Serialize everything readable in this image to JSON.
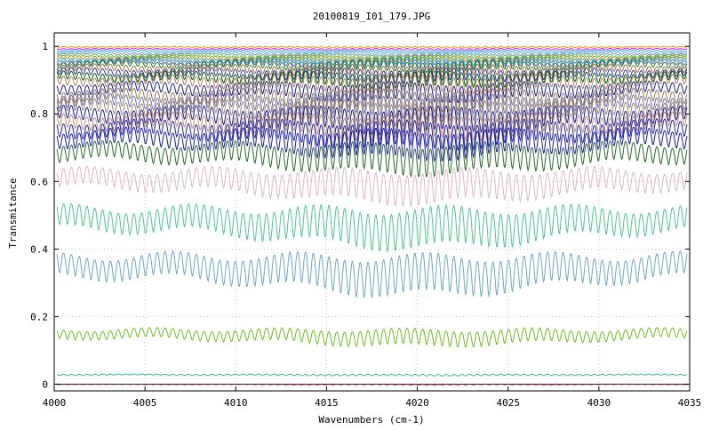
{
  "chart_data": {
    "type": "line",
    "title": "20100819_I01_179.JPG",
    "xlabel": "Wavenumbers (cm-1)",
    "ylabel": "Transmitance",
    "xlim": [
      4000,
      4035
    ],
    "ylim": [
      -0.02,
      1.04
    ],
    "xticks": [
      4000,
      4005,
      4010,
      4015,
      4020,
      4025,
      4030,
      4035
    ],
    "yticks": [
      0,
      0.2,
      0.4,
      0.6,
      0.8,
      1
    ],
    "ytick_labels": [
      "0",
      "0.2",
      "0.4",
      "0.6",
      "0.8",
      "1"
    ],
    "grid": true,
    "legend": "none",
    "series": [
      {
        "color": "#e8a000",
        "level": 1.0,
        "depth": 0.004
      },
      {
        "color": "#ff00ff",
        "level": 0.995,
        "depth": 0.006
      },
      {
        "color": "#00c8c8",
        "level": 0.99,
        "depth": 0.008
      },
      {
        "color": "#8080ff",
        "level": 0.985,
        "depth": 0.012
      },
      {
        "color": "#40c040",
        "level": 0.98,
        "depth": 0.015
      },
      {
        "color": "#c08000",
        "level": 0.975,
        "depth": 0.018
      },
      {
        "color": "#00a0a0",
        "level": 0.97,
        "depth": 0.022
      },
      {
        "color": "#6060c0",
        "level": 0.965,
        "depth": 0.026
      },
      {
        "color": "#208020",
        "level": 0.96,
        "depth": 0.03
      },
      {
        "color": "#a07040",
        "level": 0.95,
        "depth": 0.035
      },
      {
        "color": "#3030a0",
        "level": 0.94,
        "depth": 0.04
      },
      {
        "color": "#006000",
        "level": 0.93,
        "depth": 0.045
      },
      {
        "color": "#b08060",
        "level": 0.92,
        "depth": 0.05
      },
      {
        "color": "#1c1c8c",
        "level": 0.9,
        "depth": 0.055
      },
      {
        "color": "#907850",
        "level": 0.88,
        "depth": 0.06
      },
      {
        "color": "#7070c0",
        "level": 0.865,
        "depth": 0.065
      },
      {
        "color": "#a08868",
        "level": 0.85,
        "depth": 0.07
      },
      {
        "color": "#1818a0",
        "level": 0.83,
        "depth": 0.075
      },
      {
        "color": "#c09070",
        "level": 0.81,
        "depth": 0.075
      },
      {
        "color": "#2020b0",
        "level": 0.79,
        "depth": 0.08
      },
      {
        "color": "#1a1aa8",
        "level": 0.765,
        "depth": 0.085
      },
      {
        "color": "#2a6a2a",
        "level": 0.725,
        "depth": 0.09
      },
      {
        "color": "#e0b8c8",
        "level": 0.65,
        "depth": 0.1
      },
      {
        "color": "#50c890",
        "level": 0.54,
        "depth": 0.12
      },
      {
        "color": "#70a8c0",
        "level": 0.4,
        "depth": 0.12
      },
      {
        "color": "#70c020",
        "level": 0.17,
        "depth": 0.05
      },
      {
        "color": "#40c090",
        "level": 0.03,
        "depth": 0.005
      },
      {
        "color": "#c01050",
        "level": 0.0,
        "depth": 0.002
      },
      {
        "color": "#404040",
        "level": 0.0,
        "depth": 0.0
      }
    ]
  }
}
